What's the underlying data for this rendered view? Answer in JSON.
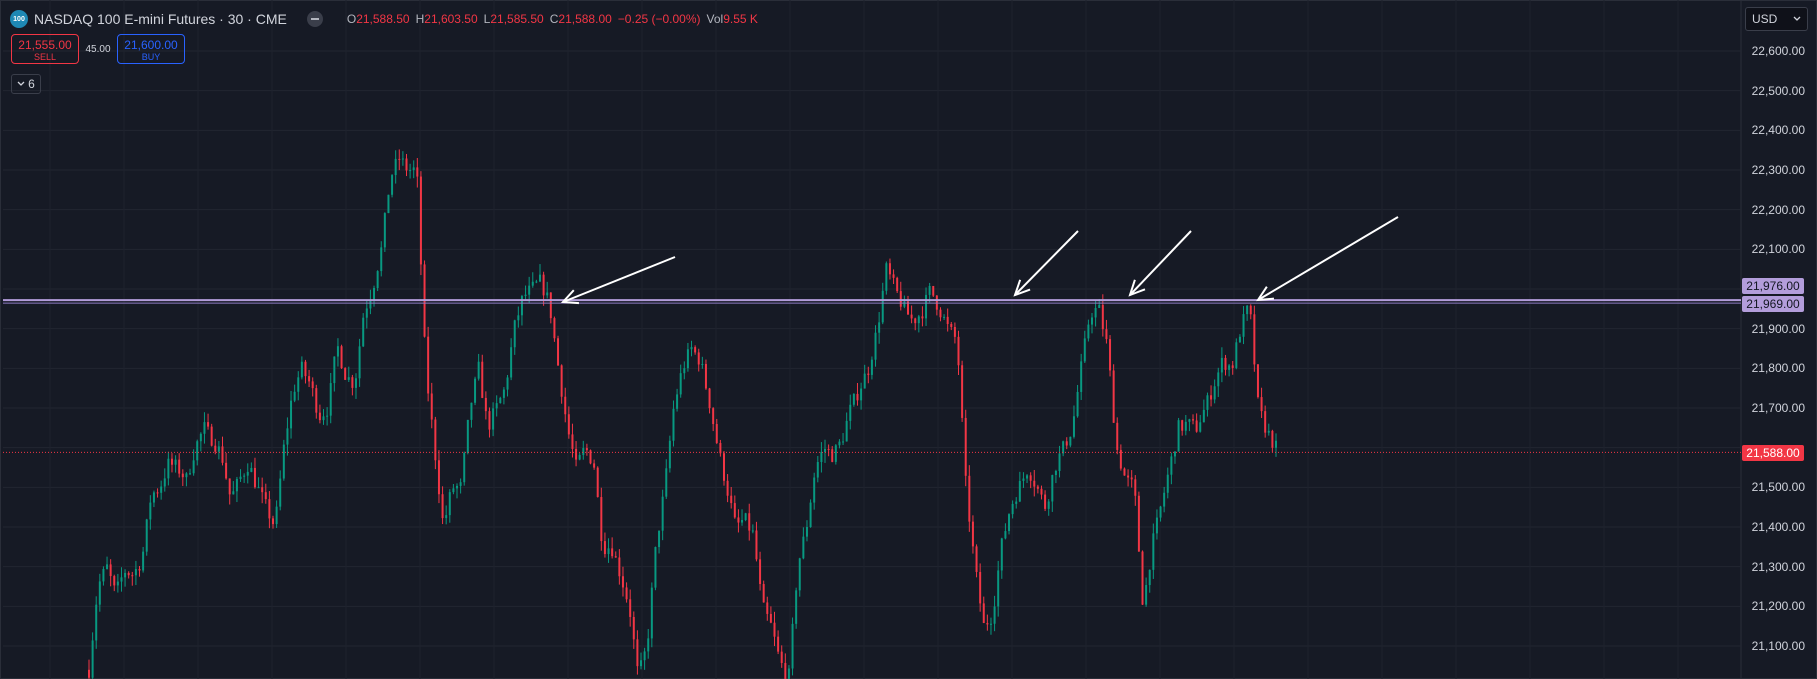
{
  "header": {
    "symbol_logo": "100",
    "title": "NASDAQ 100 E-mini Futures · 30 · CME",
    "eye_icon": "minus-circle-icon",
    "ohlc": [
      {
        "key": "O",
        "value": "21,588.50"
      },
      {
        "key": "H",
        "value": "21,603.50"
      },
      {
        "key": "L",
        "value": "21,585.50"
      },
      {
        "key": "C",
        "value": "21,588.00"
      },
      {
        "key": "",
        "value": "−0.25 (−0.00%)"
      },
      {
        "key": "Vol",
        "value": "9.55 K"
      }
    ]
  },
  "trade": {
    "sell_price": "21,555.00",
    "sell_label": "SELL",
    "spread": "45.00",
    "buy_price": "21,600.00",
    "buy_label": "BUY"
  },
  "collapse": {
    "icon": "chevron-down-icon",
    "count": "6"
  },
  "currency": {
    "label": "USD",
    "icon": "chevron-down-icon"
  },
  "price_axis": {
    "labels": [
      "22,600.00",
      "22,500.00",
      "22,400.00",
      "22,300.00",
      "22,200.00",
      "22,100.00",
      "21,900.00",
      "21,800.00",
      "21,700.00",
      "21,500.00",
      "21,400.00",
      "21,300.00",
      "21,200.00",
      "21,100.00"
    ],
    "tag_high": "21,976.00",
    "tag_line": "21,969.00",
    "tag_last": "21,588.00"
  },
  "colors": {
    "background": "#161a25",
    "up": "#089981",
    "down": "#f23645",
    "horizontal_line": "#b39ddb",
    "last_price": "#f23645"
  },
  "chart_data": {
    "type": "candlestick",
    "yrange": [
      21060,
      22660
    ],
    "horizontal_level": 21972,
    "last_price": 21588,
    "annotations": "four white arrows pointing to the horizontal resistance level",
    "candles_path": [
      21040,
      21250,
      21300,
      21230,
      21290,
      21280,
      21320,
      21480,
      21500,
      21560,
      21550,
      21520,
      21600,
      21650,
      21620,
      21580,
      21470,
      21520,
      21560,
      21500,
      21450,
      21400,
      21600,
      21740,
      21800,
      21760,
      21680,
      21700,
      21860,
      21780,
      21760,
      21940,
      22000,
      22100,
      22280,
      22330,
      22300,
      22300,
      21800,
      21600,
      21400,
      21500,
      21500,
      21700,
      21800,
      21650,
      21700,
      21750,
      21900,
      21980,
      22000,
      22020,
      21960,
      21800,
      21650,
      21550,
      21600,
      21560,
      21350,
      21350,
      21280,
      21200,
      21020,
      21100,
      21350,
      21500,
      21700,
      21800,
      21850,
      21820,
      21720,
      21600,
      21500,
      21400,
      21420,
      21380,
      21200,
      21150,
      21060,
      21020,
      21300,
      21400,
      21550,
      21600,
      21580,
      21620,
      21700,
      21750,
      21800,
      21900,
      22050,
      22000,
      21950,
      21920,
      21940,
      22000,
      21950,
      21900,
      21870,
      21500,
      21300,
      21150,
      21180,
      21350,
      21450,
      21500,
      21550,
      21500,
      21450,
      21550,
      21600,
      21650,
      21800,
      21940,
      21950,
      21850,
      21600,
      21520,
      21500,
      21200,
      21350,
      21450,
      21550,
      21650,
      21660,
      21650,
      21700,
      21760,
      21820,
      21800,
      21900,
      21960,
      21700,
      21640,
      21600
    ]
  }
}
